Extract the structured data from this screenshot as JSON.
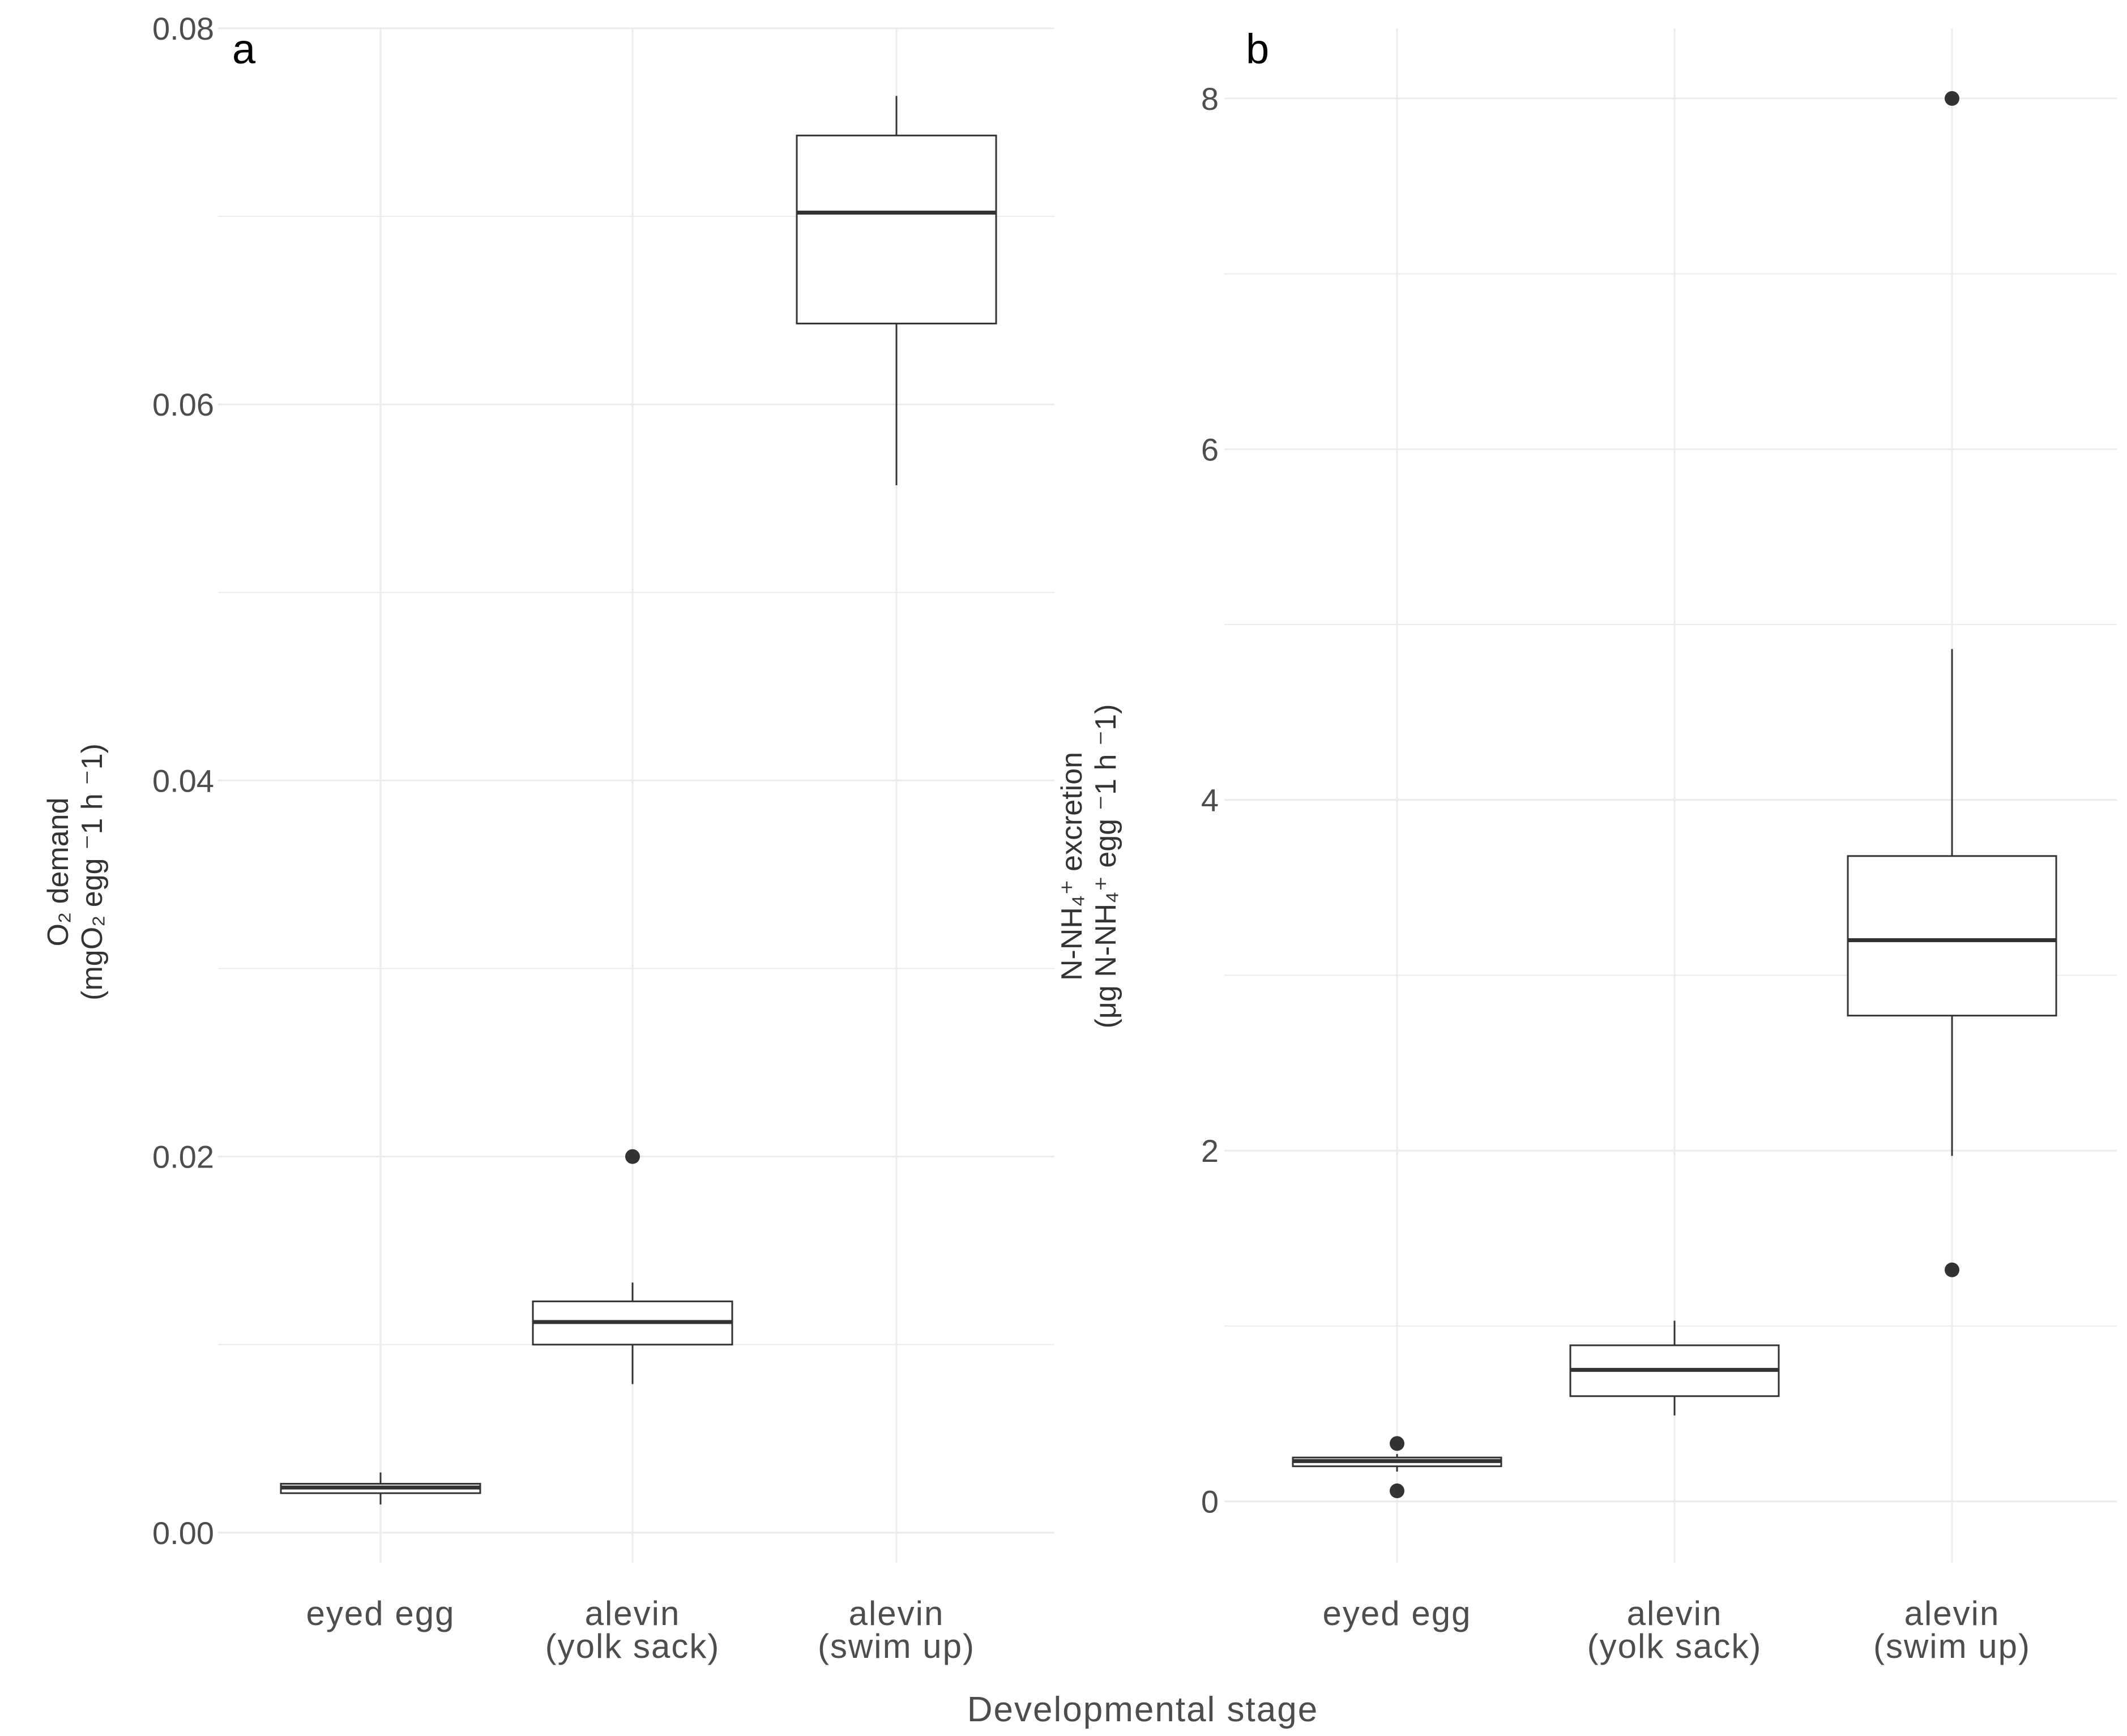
{
  "figure": {
    "x_axis_title": "Developmental stage"
  },
  "chart_data": [
    {
      "panel": "a",
      "type": "boxplot",
      "categories": [
        {
          "line1": "eyed egg",
          "line2": ""
        },
        {
          "line1": "alevin",
          "line2": "(yolk sack)"
        },
        {
          "line1": "alevin",
          "line2": "(swim up)"
        }
      ],
      "ylabel_line1": "O₂ demand",
      "ylabel_line2": "(mgO₂ egg ⁻1 h ⁻1)",
      "ylim": [
        -0.0016,
        0.08
      ],
      "yticks": [
        0.0,
        0.02,
        0.04,
        0.06,
        0.08
      ],
      "ytick_labels": [
        "0.00",
        "0.02",
        "0.04",
        "0.06",
        "0.08"
      ],
      "boxes": [
        {
          "min": 0.0015,
          "q1": 0.0021,
          "median": 0.0024,
          "q3": 0.0026,
          "max": 0.0032,
          "outliers": []
        },
        {
          "min": 0.0079,
          "q1": 0.01,
          "median": 0.0112,
          "q3": 0.0123,
          "max": 0.0133,
          "outliers": [
            0.02
          ]
        },
        {
          "min": 0.0557,
          "q1": 0.0643,
          "median": 0.0702,
          "q3": 0.0743,
          "max": 0.0764,
          "outliers": []
        }
      ],
      "grid": true,
      "colors": {
        "box_stroke": "#333333",
        "box_fill": "#ffffff",
        "grid": "#ebebeb",
        "outlier": "#333333"
      }
    },
    {
      "panel": "b",
      "type": "boxplot",
      "categories": [
        {
          "line1": "eyed egg",
          "line2": ""
        },
        {
          "line1": "alevin",
          "line2": "(yolk sack)"
        },
        {
          "line1": "alevin",
          "line2": "(swim up)"
        }
      ],
      "ylabel_line1": "N-NH₄⁺ excretion",
      "ylabel_line2": "(μg N-NH₄⁺ egg ⁻1 h ⁻1)",
      "ylim": [
        -0.35,
        8.4
      ],
      "yticks": [
        0,
        2,
        4,
        6,
        8
      ],
      "ytick_labels": [
        "0",
        "2",
        "4",
        "6",
        "8"
      ],
      "boxes": [
        {
          "min": 0.17,
          "q1": 0.2,
          "median": 0.23,
          "q3": 0.25,
          "max": 0.27,
          "outliers": [
            0.33,
            0.06
          ]
        },
        {
          "min": 0.49,
          "q1": 0.6,
          "median": 0.75,
          "q3": 0.89,
          "max": 1.03,
          "outliers": []
        },
        {
          "min": 1.97,
          "q1": 2.77,
          "median": 3.2,
          "q3": 3.68,
          "max": 4.86,
          "outliers": [
            8.0,
            1.32
          ]
        }
      ],
      "grid": true,
      "colors": {
        "box_stroke": "#333333",
        "box_fill": "#ffffff",
        "grid": "#ebebeb",
        "outlier": "#333333"
      }
    }
  ]
}
